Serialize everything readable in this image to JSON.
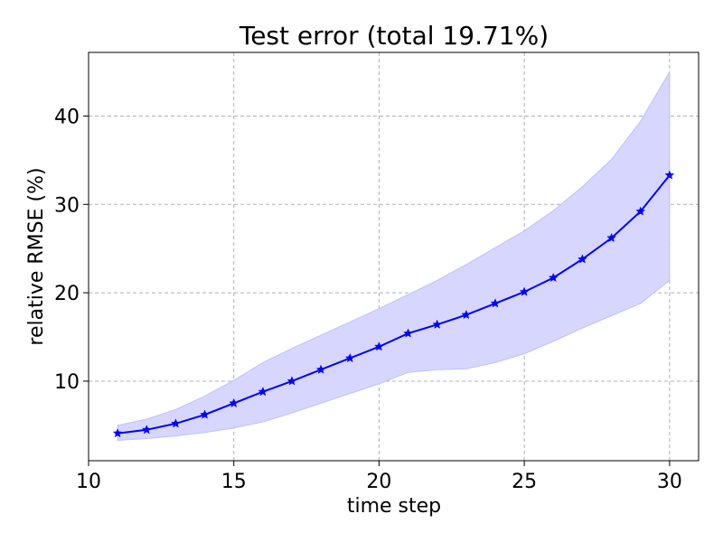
{
  "chart_data": {
    "type": "line",
    "title": "Test error (total 19.71%)",
    "xlabel": "time step",
    "ylabel": "relative RMSE (%)",
    "xlim": [
      10,
      31
    ],
    "ylim": [
      1.0,
      47.2
    ],
    "xticks": [
      10,
      15,
      20,
      25,
      30
    ],
    "yticks": [
      10,
      20,
      30,
      40
    ],
    "grid": true,
    "colors": {
      "line": "#0000ff",
      "band": "#d6d6ff",
      "band_edge": "#c0c0ff",
      "grid": "#b0b0b0"
    },
    "x": [
      11,
      12,
      13,
      14,
      15,
      16,
      17,
      18,
      19,
      20,
      21,
      22,
      23,
      24,
      25,
      26,
      27,
      28,
      29,
      30
    ],
    "series": [
      {
        "values": [
          4.1,
          4.5,
          5.2,
          6.2,
          7.5,
          8.8,
          10.0,
          11.3,
          12.6,
          13.9,
          15.4,
          16.4,
          17.5,
          18.8,
          20.1,
          21.7,
          23.8,
          26.2,
          29.2,
          33.3
        ],
        "band_lower": [
          3.3,
          3.5,
          3.8,
          4.2,
          4.7,
          5.4,
          6.4,
          7.5,
          8.6,
          9.7,
          11.0,
          11.3,
          11.4,
          12.1,
          13.1,
          14.5,
          16.0,
          17.4,
          18.8,
          21.4
        ],
        "band_upper": [
          5.0,
          5.7,
          6.8,
          8.3,
          10.1,
          12.1,
          13.7,
          15.2,
          16.7,
          18.2,
          19.8,
          21.4,
          23.2,
          25.1,
          27.0,
          29.3,
          32.0,
          35.1,
          39.4,
          45.0
        ]
      }
    ]
  }
}
